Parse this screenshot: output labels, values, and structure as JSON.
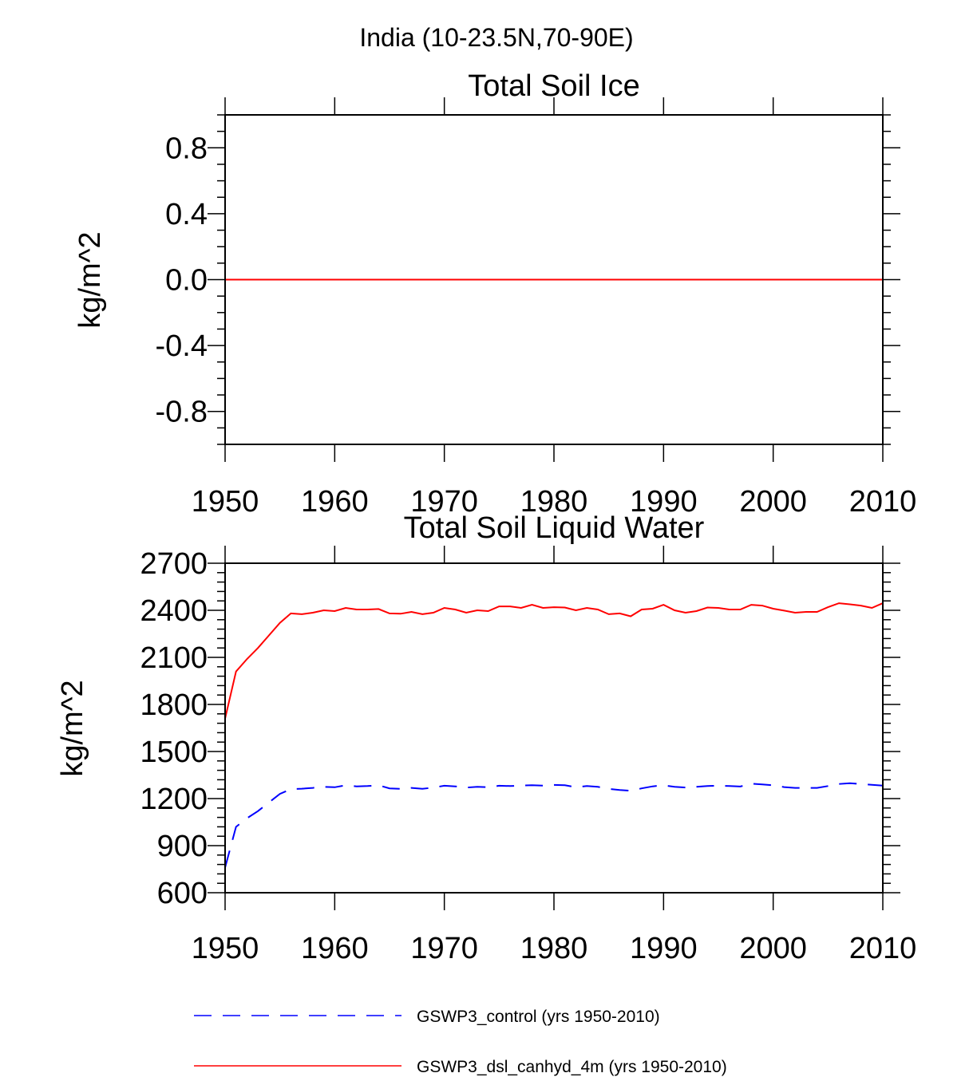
{
  "figure_title": "India (10-23.5N,70-90E)",
  "legend": [
    {
      "label": "GSWP3_control (yrs 1950-2010)",
      "color": "#0000ff",
      "style": "dashed"
    },
    {
      "label": "GSWP3_dsl_canhyd_4m (yrs 1950-2010)",
      "color": "#ff0000",
      "style": "solid"
    }
  ],
  "chart_data": [
    {
      "type": "line",
      "title": "Total Soil Ice",
      "xlabel": "",
      "ylabel": "kg/m^2",
      "xlim": [
        1950,
        2010
      ],
      "ylim": [
        -1.0,
        1.0
      ],
      "xticks": [
        1950,
        1960,
        1970,
        1980,
        1990,
        2000,
        2010
      ],
      "xtick_labels": [
        "1950",
        "1960",
        "1970",
        "1980",
        "1990",
        "2000",
        "2010"
      ],
      "yticks": [
        -0.8,
        -0.4,
        0.0,
        0.4,
        0.8
      ],
      "ytick_labels": [
        "-0.8",
        "-0.4",
        "0.0",
        "0.4",
        "0.8"
      ],
      "x_minor_step": 10,
      "y_minor_step": 0.1,
      "grid": false,
      "series": [
        {
          "name": "GSWP3_control (yrs 1950-2010)",
          "color": "#0000ff",
          "style": "dashed",
          "x": [
            1950,
            2010
          ],
          "values": [
            0,
            0
          ]
        },
        {
          "name": "GSWP3_dsl_canhyd_4m (yrs 1950-2010)",
          "color": "#ff0000",
          "style": "solid",
          "x": [
            1950,
            2010
          ],
          "values": [
            0,
            0
          ]
        }
      ]
    },
    {
      "type": "line",
      "title": "Total Soil Liquid Water",
      "xlabel": "",
      "ylabel": "kg/m^2",
      "xlim": [
        1950,
        2010
      ],
      "ylim": [
        600,
        2700
      ],
      "xticks": [
        1950,
        1960,
        1970,
        1980,
        1990,
        2000,
        2010
      ],
      "xtick_labels": [
        "1950",
        "1960",
        "1970",
        "1980",
        "1990",
        "2000",
        "2010"
      ],
      "yticks": [
        600,
        900,
        1200,
        1500,
        1800,
        2100,
        2400,
        2700
      ],
      "ytick_labels": [
        "600",
        "900",
        "1200",
        "1500",
        "1800",
        "2100",
        "2400",
        "2700"
      ],
      "x_minor_step": 10,
      "y_minor_step": 60,
      "grid": false,
      "series": [
        {
          "name": "GSWP3_control (yrs 1950-2010)",
          "color": "#0000ff",
          "style": "dashed",
          "x": [
            1950,
            1951,
            1952,
            1953,
            1954,
            1955,
            1956,
            1957,
            1958,
            1959,
            1960,
            1961,
            1962,
            1963,
            1964,
            1965,
            1966,
            1967,
            1968,
            1969,
            1970,
            1971,
            1972,
            1973,
            1974,
            1975,
            1976,
            1977,
            1978,
            1979,
            1980,
            1981,
            1982,
            1983,
            1984,
            1985,
            1986,
            1987,
            1988,
            1989,
            1990,
            1991,
            1992,
            1993,
            1994,
            1995,
            1996,
            1997,
            1998,
            1999,
            2000,
            2001,
            2002,
            2003,
            2004,
            2005,
            2006,
            2007,
            2008,
            2009,
            2010
          ],
          "values": [
            760,
            1020,
            1075,
            1120,
            1175,
            1230,
            1260,
            1263,
            1268,
            1275,
            1272,
            1285,
            1278,
            1280,
            1285,
            1265,
            1262,
            1268,
            1262,
            1270,
            1282,
            1278,
            1270,
            1275,
            1272,
            1282,
            1280,
            1283,
            1285,
            1283,
            1287,
            1285,
            1272,
            1280,
            1275,
            1262,
            1255,
            1250,
            1265,
            1278,
            1285,
            1275,
            1270,
            1275,
            1280,
            1283,
            1280,
            1277,
            1295,
            1290,
            1285,
            1273,
            1268,
            1268,
            1268,
            1280,
            1293,
            1298,
            1292,
            1288,
            1283
          ]
        },
        {
          "name": "GSWP3_dsl_canhyd_4m (yrs 1950-2010)",
          "color": "#ff0000",
          "style": "solid",
          "x": [
            1950,
            1951,
            1952,
            1953,
            1954,
            1955,
            1956,
            1957,
            1958,
            1959,
            1960,
            1961,
            1962,
            1963,
            1964,
            1965,
            1966,
            1967,
            1968,
            1969,
            1970,
            1971,
            1972,
            1973,
            1974,
            1975,
            1976,
            1977,
            1978,
            1979,
            1980,
            1981,
            1982,
            1983,
            1984,
            1985,
            1986,
            1987,
            1988,
            1989,
            1990,
            1991,
            1992,
            1993,
            1994,
            1995,
            1996,
            1997,
            1998,
            1999,
            2000,
            2001,
            2002,
            2003,
            2004,
            2005,
            2006,
            2007,
            2008,
            2009,
            2010
          ],
          "values": [
            1710,
            2010,
            2090,
            2160,
            2240,
            2320,
            2380,
            2375,
            2385,
            2400,
            2395,
            2415,
            2405,
            2405,
            2408,
            2380,
            2378,
            2390,
            2375,
            2385,
            2415,
            2405,
            2385,
            2400,
            2395,
            2425,
            2425,
            2415,
            2435,
            2415,
            2420,
            2418,
            2400,
            2415,
            2405,
            2375,
            2380,
            2362,
            2405,
            2410,
            2435,
            2400,
            2385,
            2395,
            2418,
            2415,
            2405,
            2405,
            2435,
            2430,
            2410,
            2398,
            2385,
            2390,
            2390,
            2420,
            2445,
            2438,
            2430,
            2415,
            2445
          ]
        }
      ]
    }
  ]
}
